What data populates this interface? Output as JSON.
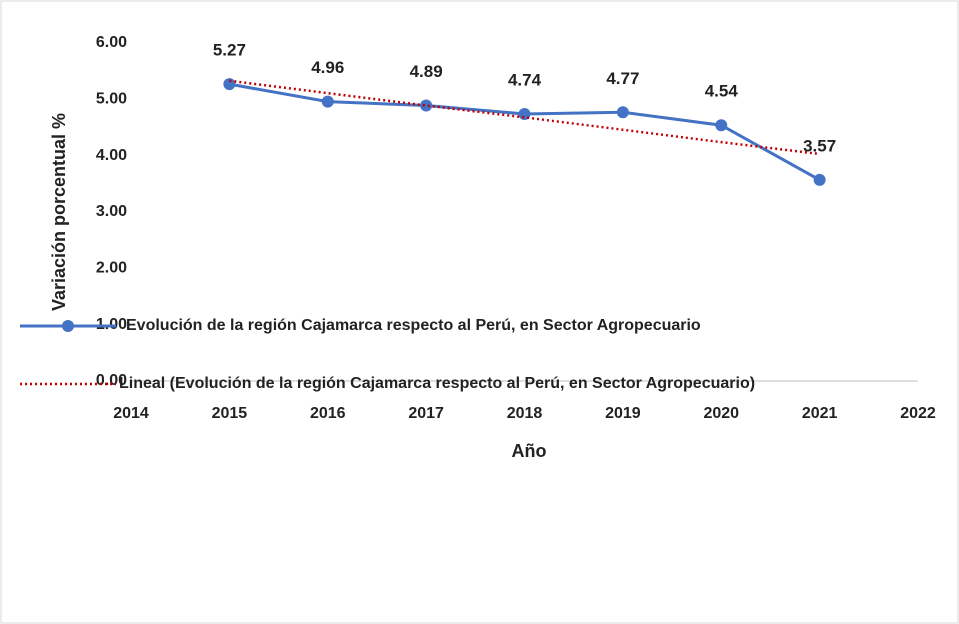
{
  "chart_data": {
    "type": "line",
    "y_axis_label": "Variación porcentual %",
    "x_axis_label": "Año",
    "x": [
      2015,
      2016,
      2017,
      2018,
      2019,
      2020,
      2021
    ],
    "series": [
      {
        "name": "Evolución  de la región Cajamarca respecto al Perú, en Sector Agropecuario",
        "color": "#4472c4",
        "style": "solid",
        "markers": true,
        "values": [
          5.27,
          4.96,
          4.89,
          4.74,
          4.77,
          4.54,
          3.57
        ]
      },
      {
        "name": "Lineal (Evolución  de la región Cajamarca respecto al Perú, en Sector Agropecuario)",
        "color": "#c00000",
        "style": "dotted",
        "markers": false,
        "values": [
          5.33,
          5.11,
          4.89,
          4.68,
          4.46,
          4.24,
          4.03
        ]
      }
    ],
    "data_labels_series": 0,
    "xlim": [
      2014,
      2022
    ],
    "xticks": [
      2014,
      2015,
      2016,
      2017,
      2018,
      2019,
      2020,
      2021,
      2022
    ],
    "ylim": [
      0,
      6
    ],
    "yticks": [
      {
        "value": 0,
        "label": "0.00"
      },
      {
        "value": 1,
        "label": "1.00"
      },
      {
        "value": 2,
        "label": "2.00"
      },
      {
        "value": 3,
        "label": "3.00"
      },
      {
        "value": 4,
        "label": "4.00"
      },
      {
        "value": 5,
        "label": "5.00"
      },
      {
        "value": 6,
        "label": "6.00"
      }
    ],
    "grid": false,
    "legend": "bottom"
  }
}
